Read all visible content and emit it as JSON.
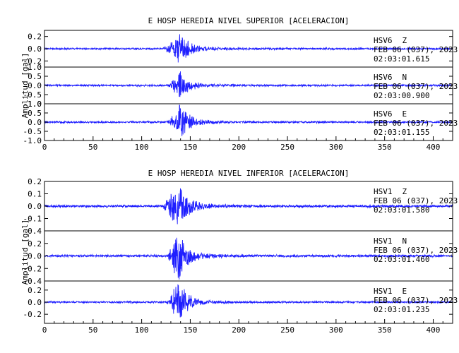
{
  "chart_data": [
    {
      "type": "line",
      "title": "E HOSP HEREDIA NIVEL SUPERIOR [ACELERACION]",
      "ylabel": "Amplitud [gal]",
      "xlim": [
        0,
        420
      ],
      "xticks": [
        "0",
        "50",
        "100",
        "150",
        "200",
        "250",
        "300",
        "350",
        "400"
      ],
      "line_color": "#1f1fff",
      "panels": [
        {
          "station": "HSV6",
          "component": "Z",
          "date": "FEB 06 (037), 2023",
          "time": "02:03:01.615",
          "ylim": [
            -0.3,
            0.3
          ],
          "yticks": [
            "-0.2",
            "0.0",
            "0.2"
          ],
          "tick_values": [
            -0.2,
            0.0,
            0.2
          ],
          "noise_amp": 0.012,
          "peak_amp": 0.2,
          "event_start": 120,
          "event_peak": 139
        },
        {
          "station": "HSV6",
          "component": "N",
          "date": "FEB 06 (037), 2023",
          "time": "02:03:00.900",
          "ylim": [
            -1.0,
            1.0
          ],
          "yticks": [
            "-1.0",
            "-0.5",
            "0.0",
            "0.5",
            "1.0"
          ],
          "tick_values": [
            -1.0,
            -0.5,
            0.0,
            0.5,
            1.0
          ],
          "noise_amp": 0.04,
          "peak_amp": 0.55,
          "event_start": 125,
          "event_peak": 139
        },
        {
          "station": "HSV6",
          "component": "E",
          "date": "FEB 06 (037), 2023",
          "time": "02:03:01.155",
          "ylim": [
            -1.0,
            1.0
          ],
          "yticks": [
            "-1.0",
            "-0.5",
            "0.0",
            "0.5",
            "1.0"
          ],
          "tick_values": [
            -1.0,
            -0.5,
            0.0,
            0.5,
            1.0
          ],
          "noise_amp": 0.04,
          "peak_amp": 0.75,
          "event_start": 125,
          "event_peak": 139
        }
      ]
    },
    {
      "type": "line",
      "title": "E HOSP HEREDIA NIVEL INFERIOR [ACELERACION]",
      "ylabel": "Amplitud [gal]",
      "xlim": [
        0,
        420
      ],
      "xticks": [
        "0",
        "50",
        "100",
        "150",
        "200",
        "250",
        "300",
        "350",
        "400"
      ],
      "line_color": "#1f1fff",
      "panels": [
        {
          "station": "HSV1",
          "component": "Z",
          "date": "FEB 06 (037), 2023",
          "time": "02:03:01.580",
          "ylim": [
            -0.2,
            0.2
          ],
          "yticks": [
            "-0.1",
            "0.0",
            "0.1",
            "0.2"
          ],
          "tick_values": [
            -0.1,
            0.0,
            0.1,
            0.2
          ],
          "noise_amp": 0.008,
          "peak_amp": 0.17,
          "event_start": 120,
          "event_peak": 137
        },
        {
          "station": "HSV1",
          "component": "N",
          "date": "FEB 06 (037), 2023",
          "time": "02:03:01.460",
          "ylim": [
            -0.4,
            0.4
          ],
          "yticks": [
            "-0.4",
            "-0.2",
            "0.0",
            "0.2",
            "0.4"
          ],
          "tick_values": [
            -0.4,
            -0.2,
            0.0,
            0.2,
            0.4
          ],
          "noise_amp": 0.015,
          "peak_amp": 0.32,
          "event_start": 125,
          "event_peak": 137
        },
        {
          "station": "HSV1",
          "component": "E",
          "date": "FEB 06 (037), 2023",
          "time": "02:03:01.235",
          "ylim": [
            -0.35,
            0.35
          ],
          "yticks": [
            "-0.2",
            "0.0",
            "0.2"
          ],
          "tick_values": [
            -0.2,
            0.0,
            0.2
          ],
          "noise_amp": 0.012,
          "peak_amp": 0.3,
          "event_start": 125,
          "event_peak": 137
        }
      ]
    }
  ]
}
